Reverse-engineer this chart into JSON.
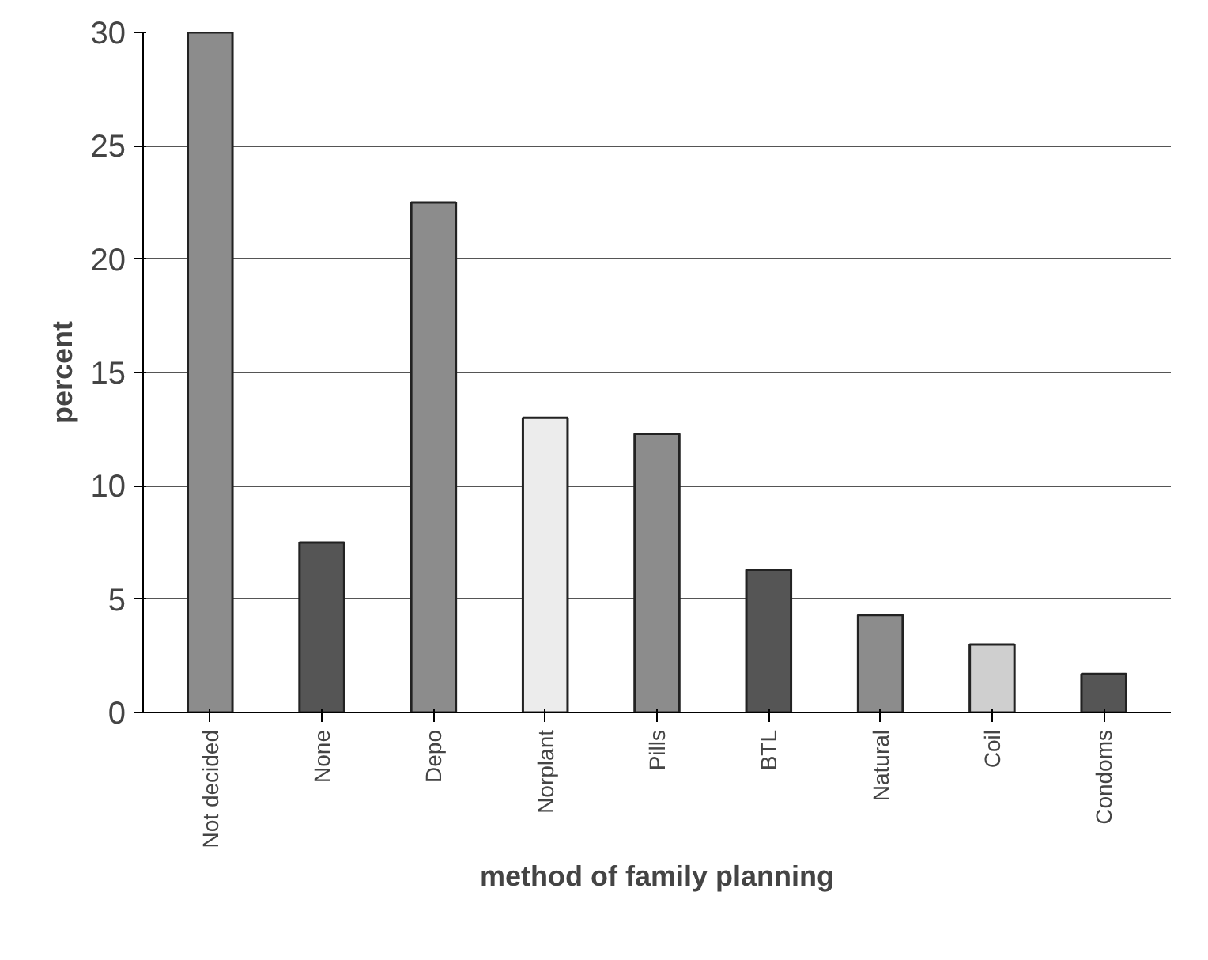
{
  "chart_data": {
    "type": "bar",
    "xlabel": "method of family planning",
    "ylabel": "percent",
    "categories": [
      "Not decided",
      "None",
      "Depo",
      "Norplant",
      "Pills",
      "BTL",
      "Natural",
      "Coil",
      "Condoms"
    ],
    "values": [
      30,
      7.5,
      22.5,
      13,
      12.3,
      6.3,
      4.3,
      3,
      1.7
    ],
    "colors": [
      "#8c8c8c",
      "#555555",
      "#8c8c8c",
      "#ececec",
      "#8c8c8c",
      "#555555",
      "#8c8c8c",
      "#cfcfcf",
      "#555555"
    ],
    "ylim": [
      0,
      30
    ],
    "yticks": [
      0,
      5,
      10,
      15,
      20,
      25,
      30
    ],
    "grid": "y"
  }
}
